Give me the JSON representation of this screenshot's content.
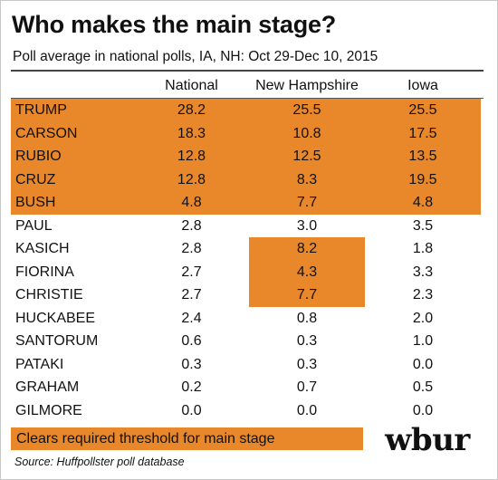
{
  "chart_data": {
    "type": "table",
    "title": "Who makes the main stage?",
    "subtitle": "Poll average in national polls, IA, NH: Oct 29-Dec 10, 2015",
    "columns": [
      "National",
      "New Hampshire",
      "Iowa"
    ],
    "rows": [
      {
        "label": "TRUMP",
        "values": [
          "28.2",
          "25.5",
          "25.5"
        ],
        "clears": [
          true,
          true,
          true
        ]
      },
      {
        "label": "CARSON",
        "values": [
          "18.3",
          "10.8",
          "17.5"
        ],
        "clears": [
          true,
          true,
          true
        ]
      },
      {
        "label": "RUBIO",
        "values": [
          "12.8",
          "12.5",
          "13.5"
        ],
        "clears": [
          true,
          true,
          true
        ]
      },
      {
        "label": "CRUZ",
        "values": [
          "12.8",
          "8.3",
          "19.5"
        ],
        "clears": [
          true,
          true,
          true
        ]
      },
      {
        "label": "BUSH",
        "values": [
          "4.8",
          "7.7",
          "4.8"
        ],
        "clears": [
          true,
          true,
          true
        ]
      },
      {
        "label": "PAUL",
        "values": [
          "2.8",
          "3.0",
          "3.5"
        ],
        "clears": [
          false,
          false,
          false
        ]
      },
      {
        "label": "KASICH",
        "values": [
          "2.8",
          "8.2",
          "1.8"
        ],
        "clears": [
          false,
          true,
          false
        ]
      },
      {
        "label": "FIORINA",
        "values": [
          "2.7",
          "4.3",
          "3.3"
        ],
        "clears": [
          false,
          true,
          false
        ]
      },
      {
        "label": "CHRISTIE",
        "values": [
          "2.7",
          "7.7",
          "2.3"
        ],
        "clears": [
          false,
          true,
          false
        ]
      },
      {
        "label": "HUCKABEE",
        "values": [
          "2.4",
          "0.8",
          "2.0"
        ],
        "clears": [
          false,
          false,
          false
        ]
      },
      {
        "label": "SANTORUM",
        "values": [
          "0.6",
          "0.3",
          "1.0"
        ],
        "clears": [
          false,
          false,
          false
        ]
      },
      {
        "label": "PATAKI",
        "values": [
          "0.3",
          "0.3",
          "0.0"
        ],
        "clears": [
          false,
          false,
          false
        ]
      },
      {
        "label": "GRAHAM",
        "values": [
          "0.2",
          "0.7",
          "0.5"
        ],
        "clears": [
          false,
          false,
          false
        ]
      },
      {
        "label": "GILMORE",
        "values": [
          "0.0",
          "0.0",
          "0.0"
        ],
        "clears": [
          false,
          false,
          false
        ]
      }
    ],
    "legend": "Clears required threshold for main stage",
    "highlight_color": "#e8882b"
  },
  "logo": "wbur",
  "source": "Source: Huffpollster poll database"
}
